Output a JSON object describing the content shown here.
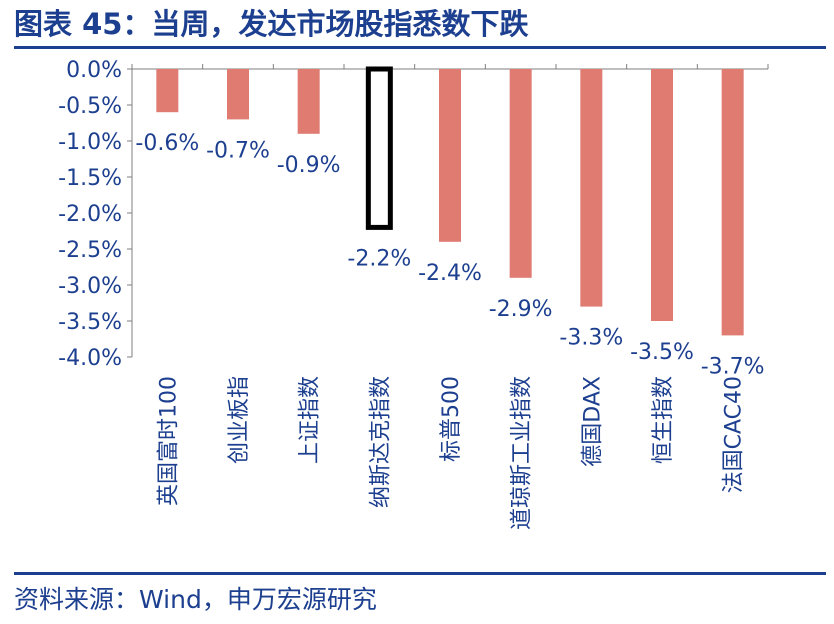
{
  "title": "图表 45：当周，发达市场股指悉数下跌",
  "source": "资料来源：Wind，申万宏源研究",
  "colors": {
    "title": "#1d3f8f",
    "bar": "#e07b72",
    "highlight_fill": "#ffffff",
    "highlight_stroke": "#000000",
    "axis_text": "#1d3f8f",
    "data_label": "#1d3f8f"
  },
  "chart_data": {
    "type": "bar",
    "categories": [
      "英国富时100",
      "创业板指",
      "上证指数",
      "纳斯达克指数",
      "标普500",
      "道琼斯工业指数",
      "德国DAX",
      "恒生指数",
      "法国CAC40"
    ],
    "values": [
      -0.6,
      -0.7,
      -0.9,
      -2.2,
      -2.4,
      -2.9,
      -3.3,
      -3.5,
      -3.7
    ],
    "data_labels": [
      "-0.6%",
      "-0.7%",
      "-0.9%",
      "-2.2%",
      "-2.4%",
      "-2.9%",
      "-3.3%",
      "-3.5%",
      "-3.7%"
    ],
    "highlight_index": 3,
    "ylim": [
      -4.0,
      0.0
    ],
    "yticks": [
      "0.0%",
      "-0.5%",
      "-1.0%",
      "-1.5%",
      "-2.0%",
      "-2.5%",
      "-3.0%",
      "-3.5%",
      "-4.0%"
    ],
    "ytick_values": [
      0,
      -0.5,
      -1.0,
      -1.5,
      -2.0,
      -2.5,
      -3.0,
      -3.5,
      -4.0
    ],
    "xlabel": "",
    "ylabel": "",
    "grid": false,
    "legend": "none"
  }
}
